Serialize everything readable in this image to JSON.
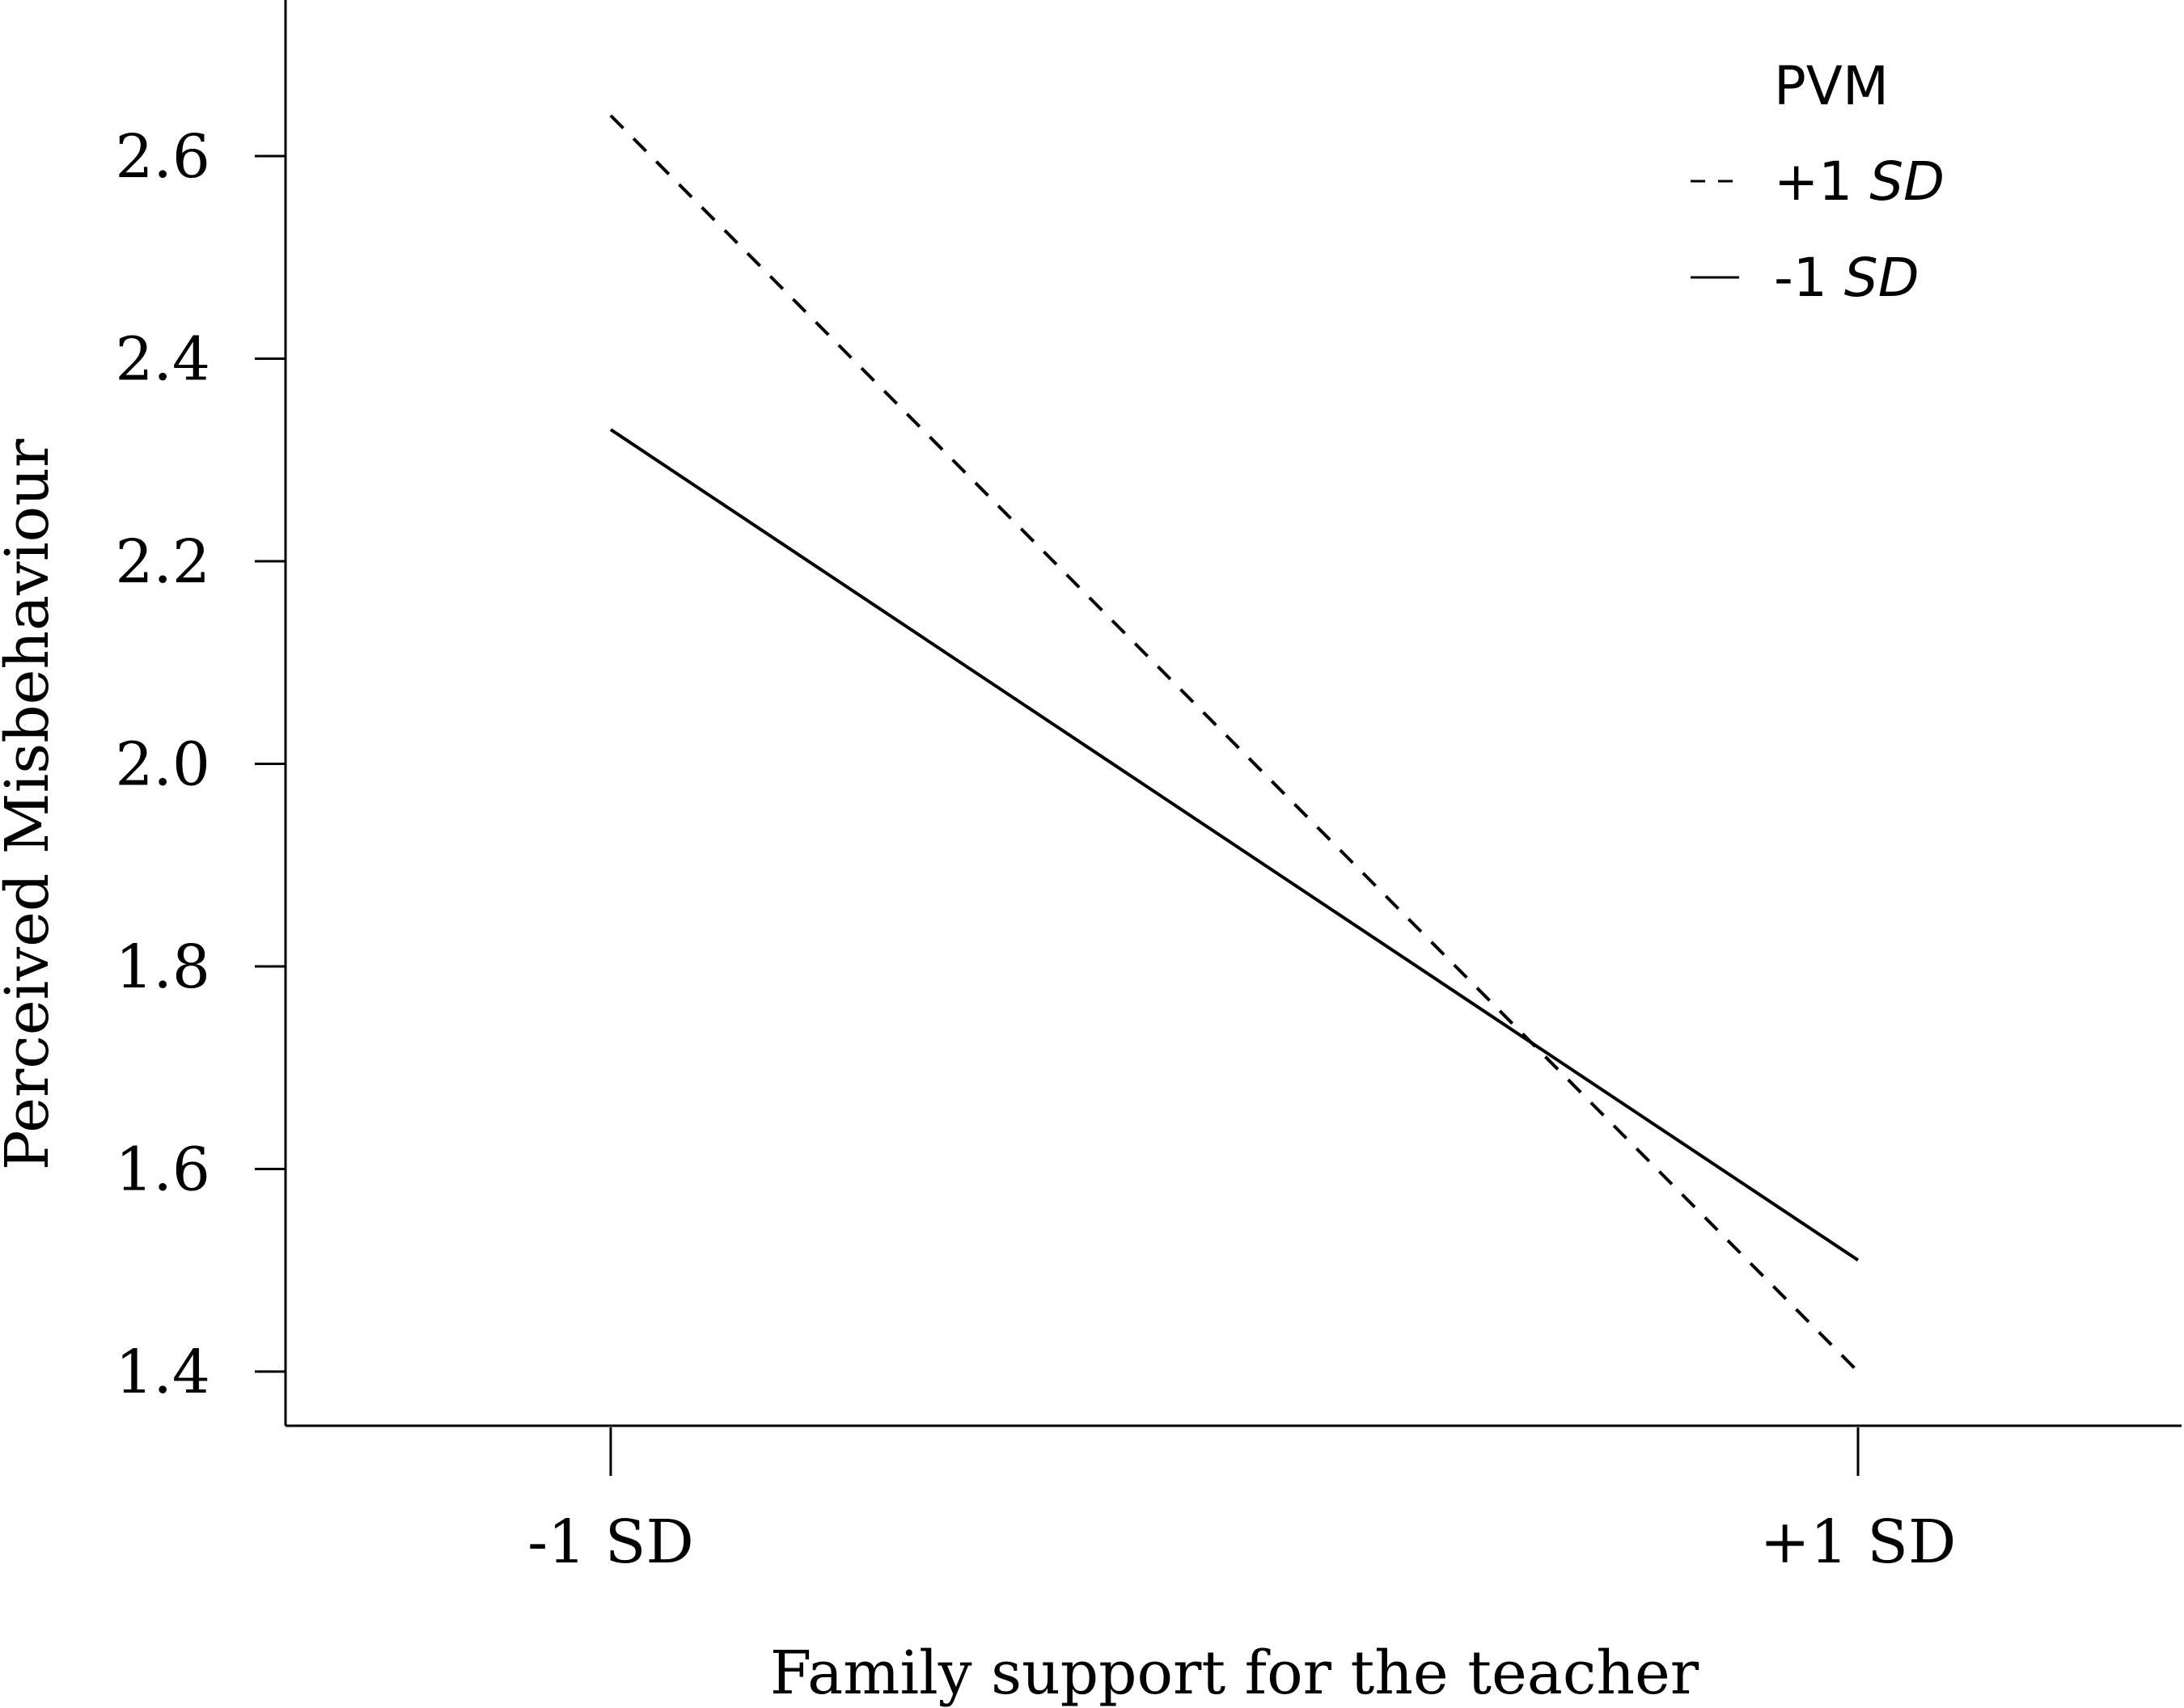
{
  "chart_data": {
    "type": "line",
    "title": "",
    "xlabel": "Family support for the teacher",
    "ylabel": "Perceived Misbehaviour",
    "categories": [
      "-1 SD",
      "+1 SD"
    ],
    "yticks": [
      "1.4",
      "1.6",
      "1.8",
      "2.0",
      "2.2",
      "2.4",
      "2.6"
    ],
    "ytick_values": [
      1.4,
      1.6,
      1.8,
      2.0,
      2.2,
      2.4,
      2.6
    ],
    "ylim": [
      1.35,
      2.75
    ],
    "grid": false,
    "legend": {
      "title": "PVM",
      "placement": "top-right"
    },
    "series": [
      {
        "name": "+1 SD",
        "name_prefix": "+1",
        "name_suffix": "SD",
        "style": "dashed",
        "color": "#000000",
        "values": [
          2.64,
          1.4
        ]
      },
      {
        "name": "-1 SD",
        "name_prefix": "-1",
        "name_suffix": "SD",
        "style": "solid",
        "color": "#000000",
        "values": [
          2.33,
          1.51
        ]
      }
    ]
  }
}
